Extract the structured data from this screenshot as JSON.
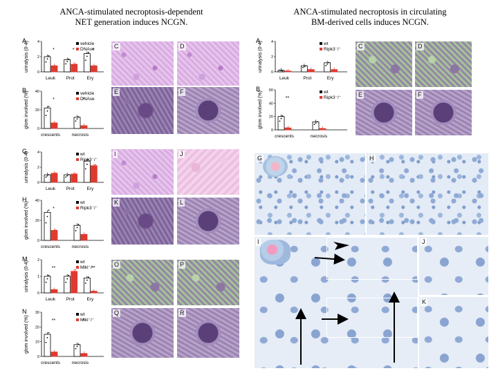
{
  "left_title": "ANCA-stimulated necroptosis-dependent\nNET generation induces NCGN.",
  "right_title": "ANCA-stimulated necroptosis in circulating\nBM-derived cells induces NCGN.",
  "panel_letters": [
    "A",
    "B",
    "C",
    "D",
    "E",
    "F",
    "G",
    "H",
    "I",
    "J",
    "K",
    "L",
    "M",
    "N",
    "O",
    "P",
    "Q",
    "R"
  ],
  "charts": {
    "A": {
      "ylabel": "urinalysis (0-4)",
      "legend": [
        "vehicle",
        "DNAse"
      ],
      "categories": [
        "Leuk",
        "Prot",
        "Ery"
      ],
      "values": [
        [
          2.0,
          1.6,
          2.4
        ],
        [
          0.8,
          1.0,
          0.8
        ]
      ],
      "ymax": 4,
      "ticks": [
        "4",
        "2",
        "0"
      ],
      "stars": [
        "*",
        "*",
        "*"
      ]
    },
    "B": {
      "ylabel": "glom involved (%)",
      "legend": [
        "vehicle",
        "DNAse"
      ],
      "categories": [
        "crescents",
        "necrosis"
      ],
      "values": [
        [
          22,
          12
        ],
        [
          6,
          3
        ]
      ],
      "ymax": 40,
      "ticks": [
        "40",
        "20",
        "0"
      ],
      "stars": [
        "*",
        "*"
      ]
    },
    "G": {
      "ylabel": "urinalysis (0-4)",
      "legend": [
        "wt",
        "Ripk3⁻/⁻"
      ],
      "categories": [
        "Leuk",
        "Prot",
        "Ery"
      ],
      "values": [
        [
          1.0,
          1.0,
          2.8
        ],
        [
          1.2,
          1.1,
          2.2
        ]
      ],
      "ymax": 4,
      "ticks": [
        "4",
        "2",
        "0"
      ],
      "stars": [
        "",
        "",
        ""
      ]
    },
    "H": {
      "ylabel": "glom involved (%)",
      "legend": [
        "wt",
        "Ripk3⁻/⁻"
      ],
      "categories": [
        "crescents",
        "necrosis"
      ],
      "values": [
        [
          28,
          15
        ],
        [
          10,
          6
        ]
      ],
      "ymax": 40,
      "ticks": [
        "40",
        "20",
        "0"
      ],
      "stars": [
        "*",
        ""
      ]
    },
    "M": {
      "ylabel": "urinalysis (0-4)",
      "legend": [
        "wt",
        "Mlkl⁻/⁻"
      ],
      "categories": [
        "Leuk",
        "Prot",
        "Ery"
      ],
      "values": [
        [
          1.0,
          1.0,
          0.9
        ],
        [
          0.2,
          1.3,
          0.1
        ]
      ],
      "ymax": 2,
      "ticks": [
        "2",
        "1",
        "0"
      ],
      "stars": [
        "**",
        "",
        "**"
      ]
    },
    "N": {
      "ylabel": "glom involved (%)",
      "legend": [
        "wt",
        "Mlkl⁻/⁻"
      ],
      "categories": [
        "crescents",
        "necrosis"
      ],
      "values": [
        [
          15,
          8
        ],
        [
          3,
          2
        ]
      ],
      "ymax": 30,
      "ticks": [
        "30",
        "20",
        "10",
        "0"
      ],
      "stars": [
        "**",
        "*"
      ]
    },
    "RA": {
      "ylabel": "urinalysis (0-4)",
      "legend": [
        "wt",
        "Ripk3⁻/⁻"
      ],
      "categories": [
        "Leuk",
        "Prot",
        "Ery"
      ],
      "values": [
        [
          0.2,
          0.8,
          1.2
        ],
        [
          0.1,
          0.3,
          0.3
        ]
      ],
      "ymax": 4,
      "ticks": [
        "4",
        "2",
        "0"
      ],
      "stars": [
        "",
        "",
        ""
      ]
    },
    "RB": {
      "ylabel": "glom involved (%)",
      "legend": [
        "wt",
        "Ripk3⁻/⁻"
      ],
      "categories": [
        "crescents",
        "necrosis"
      ],
      "values": [
        [
          20,
          12
        ],
        [
          3,
          2
        ]
      ],
      "ymax": 60,
      "ticks": [
        "60",
        "40",
        "20",
        "0"
      ],
      "stars": [
        "**",
        "*"
      ]
    }
  },
  "chart_data": [
    {
      "type": "bar",
      "panel": "A",
      "ylabel": "urinalysis (0-4)",
      "categories": [
        "Leuk",
        "Prot",
        "Ery"
      ],
      "series": [
        {
          "name": "vehicle",
          "values": [
            2.0,
            1.6,
            2.4
          ]
        },
        {
          "name": "DNAse",
          "values": [
            0.8,
            1.0,
            0.8
          ]
        }
      ],
      "ylim": [
        0,
        4
      ]
    },
    {
      "type": "bar",
      "panel": "B",
      "ylabel": "glom involved (%)",
      "categories": [
        "crescents",
        "necrosis"
      ],
      "series": [
        {
          "name": "vehicle",
          "values": [
            22,
            12
          ]
        },
        {
          "name": "DNAse",
          "values": [
            6,
            3
          ]
        }
      ],
      "ylim": [
        0,
        40
      ]
    },
    {
      "type": "bar",
      "panel": "G",
      "ylabel": "urinalysis (0-4)",
      "categories": [
        "Leuk",
        "Prot",
        "Ery"
      ],
      "series": [
        {
          "name": "wt",
          "values": [
            1.0,
            1.0,
            2.8
          ]
        },
        {
          "name": "Ripk3-/-",
          "values": [
            1.2,
            1.1,
            2.2
          ]
        }
      ],
      "ylim": [
        0,
        4
      ]
    },
    {
      "type": "bar",
      "panel": "H",
      "ylabel": "glom involved (%)",
      "categories": [
        "crescents",
        "necrosis"
      ],
      "series": [
        {
          "name": "wt",
          "values": [
            28,
            15
          ]
        },
        {
          "name": "Ripk3-/-",
          "values": [
            10,
            6
          ]
        }
      ],
      "ylim": [
        0,
        40
      ]
    },
    {
      "type": "bar",
      "panel": "M",
      "ylabel": "urinalysis (0-4)",
      "categories": [
        "Leuk",
        "Prot",
        "Ery"
      ],
      "series": [
        {
          "name": "wt",
          "values": [
            1.0,
            1.0,
            0.9
          ]
        },
        {
          "name": "Mlkl-/-",
          "values": [
            0.2,
            1.3,
            0.1
          ]
        }
      ],
      "ylim": [
        0,
        2
      ]
    },
    {
      "type": "bar",
      "panel": "N",
      "ylabel": "glom involved (%)",
      "categories": [
        "crescents",
        "necrosis"
      ],
      "series": [
        {
          "name": "wt",
          "values": [
            15,
            8
          ]
        },
        {
          "name": "Mlkl-/-",
          "values": [
            3,
            2
          ]
        }
      ],
      "ylim": [
        0,
        30
      ]
    },
    {
      "type": "bar",
      "panel": "A (right)",
      "ylabel": "urinalysis (0-4)",
      "categories": [
        "Leuk",
        "Prot",
        "Ery"
      ],
      "series": [
        {
          "name": "wt",
          "values": [
            0.2,
            0.8,
            1.2
          ]
        },
        {
          "name": "Ripk3-/-",
          "values": [
            0.1,
            0.3,
            0.3
          ]
        }
      ],
      "ylim": [
        0,
        4
      ]
    },
    {
      "type": "bar",
      "panel": "B (right)",
      "ylabel": "glom involved (%)",
      "categories": [
        "crescents",
        "necrosis"
      ],
      "series": [
        {
          "name": "wt",
          "values": [
            20,
            12
          ]
        },
        {
          "name": "Ripk3-/-",
          "values": [
            3,
            2
          ]
        }
      ],
      "ylim": [
        0,
        60
      ]
    }
  ],
  "colors": {
    "wt_bar": "#ffffff",
    "ko_bar": "#e03a2f",
    "axis": "#000000",
    "arrow": "#000000"
  }
}
